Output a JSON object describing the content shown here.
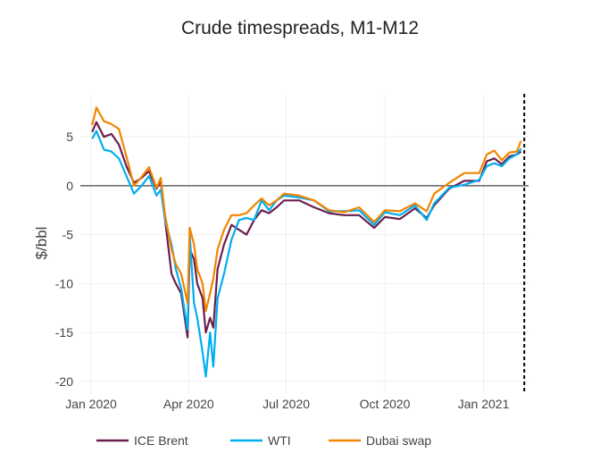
{
  "chart_data": {
    "type": "line",
    "title": "Crude timespreads, M1-M12",
    "xlabel": "",
    "ylabel": "$/bbl",
    "ylim": [
      -21.2,
      9.4
    ],
    "xlim": [
      "2019-12-22",
      "2021-02-12"
    ],
    "yticks": [
      5,
      0,
      -5,
      -10,
      -15,
      -20
    ],
    "xticks": [
      {
        "date": "2020-01-01",
        "label": "Jan 2020"
      },
      {
        "date": "2020-04-01",
        "label": "Apr 2020"
      },
      {
        "date": "2020-07-01",
        "label": "Jul 2020"
      },
      {
        "date": "2020-10-01",
        "label": "Oct 2020"
      },
      {
        "date": "2021-01-01",
        "label": "Jan 2021"
      }
    ],
    "grid": true,
    "zero_line": true,
    "vertical_marker_date": "2021-02-08",
    "legend_position": "bottom",
    "x": [
      "2020-01-02",
      "2020-01-06",
      "2020-01-13",
      "2020-01-20",
      "2020-01-27",
      "2020-02-03",
      "2020-02-10",
      "2020-02-17",
      "2020-02-24",
      "2020-03-02",
      "2020-03-06",
      "2020-03-10",
      "2020-03-16",
      "2020-03-20",
      "2020-03-25",
      "2020-03-31",
      "2020-04-02",
      "2020-04-06",
      "2020-04-09",
      "2020-04-14",
      "2020-04-17",
      "2020-04-21",
      "2020-04-24",
      "2020-04-28",
      "2020-05-04",
      "2020-05-11",
      "2020-05-18",
      "2020-05-25",
      "2020-06-01",
      "2020-06-08",
      "2020-06-15",
      "2020-06-22",
      "2020-06-29",
      "2020-07-13",
      "2020-07-27",
      "2020-08-10",
      "2020-08-24",
      "2020-09-07",
      "2020-09-21",
      "2020-10-01",
      "2020-10-15",
      "2020-10-29",
      "2020-11-09",
      "2020-11-16",
      "2020-11-30",
      "2020-12-14",
      "2020-12-28",
      "2021-01-04",
      "2021-01-11",
      "2021-01-18",
      "2021-01-25",
      "2021-02-01",
      "2021-02-05"
    ],
    "series": [
      {
        "name": "ICE Brent",
        "color": "#6b1f4f",
        "values": [
          5.5,
          6.5,
          5.0,
          5.3,
          4.2,
          2.0,
          0.3,
          0.8,
          1.5,
          -0.3,
          0.5,
          -3.5,
          -9.0,
          -10.0,
          -11.0,
          -15.5,
          -6.5,
          -7.5,
          -10,
          -11.5,
          -15,
          -13.5,
          -14.5,
          -8.5,
          -6,
          -4,
          -4.5,
          -5,
          -3.5,
          -2.5,
          -2.8,
          -2.2,
          -1.5,
          -1.5,
          -2.2,
          -2.8,
          -3.0,
          -3.0,
          -4.3,
          -3.2,
          -3.4,
          -2.3,
          -3.3,
          -2.0,
          -0.3,
          0.5,
          0.5,
          2.5,
          2.8,
          2.2,
          3.0,
          3.2,
          3.5
        ]
      },
      {
        "name": "WTI",
        "color": "#00aeef",
        "values": [
          4.8,
          5.6,
          3.7,
          3.5,
          2.8,
          1.0,
          -0.8,
          0.0,
          1.0,
          -1.0,
          -0.4,
          -3.5,
          -6.0,
          -8.5,
          -10.5,
          -14.7,
          -5.0,
          -12,
          -13.5,
          -17,
          -19.5,
          -15,
          -18.5,
          -11.5,
          -9,
          -5.5,
          -3.5,
          -3.3,
          -3.5,
          -1.5,
          -2.5,
          -1.5,
          -1.0,
          -1.2,
          -1.5,
          -2.6,
          -2.6,
          -2.5,
          -4.0,
          -2.7,
          -3.0,
          -2.0,
          -3.5,
          -1.8,
          -0.2,
          0.1,
          0.6,
          2.0,
          2.3,
          2.0,
          2.8,
          3.2,
          3.8
        ]
      },
      {
        "name": "Dubai swap",
        "color": "#f28500",
        "values": [
          6.2,
          8.0,
          6.6,
          6.3,
          5.8,
          3.0,
          0.0,
          0.9,
          1.9,
          -0.2,
          0.8,
          -3.0,
          -6.5,
          -8.0,
          -9.0,
          -12.0,
          -4.3,
          -6.0,
          -8.5,
          -10.0,
          -12.8,
          -11.0,
          -9.5,
          -6.5,
          -4.5,
          -3.0,
          -3.0,
          -2.8,
          -2.0,
          -1.3,
          -2.0,
          -1.5,
          -0.8,
          -1.0,
          -1.5,
          -2.5,
          -2.7,
          -2.2,
          -3.7,
          -2.5,
          -2.6,
          -1.8,
          -2.6,
          -0.8,
          0.3,
          1.3,
          1.3,
          3.2,
          3.6,
          2.6,
          3.4,
          3.5,
          4.6
        ]
      }
    ]
  }
}
